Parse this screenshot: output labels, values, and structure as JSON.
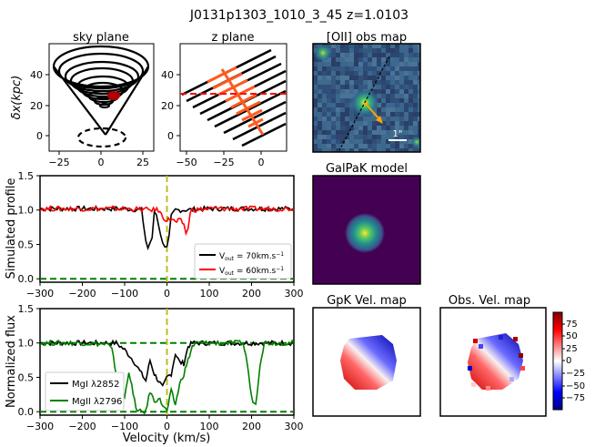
{
  "figure": {
    "title": "J0131p1303_1010_3_45 z=1.0103"
  },
  "panels": {
    "sky": {
      "title": "sky plane",
      "ylabel": "δx(kpc)",
      "xticks": [
        "−25",
        "0",
        "25"
      ],
      "yticks": [
        "0",
        "20",
        "40"
      ]
    },
    "z": {
      "title": "z plane",
      "xticks": [
        "−50",
        "−25",
        "0"
      ],
      "yticks": [
        "0",
        "20",
        "40"
      ]
    },
    "obs": {
      "title": "[OII] obs map",
      "scale_label": "1\""
    },
    "galpak": {
      "title": "GalPaK model"
    },
    "gpkvel": {
      "title": "GpK Vel. map"
    },
    "obsvel": {
      "title": "Obs. Vel. map"
    },
    "colorbar": {
      "ticks": [
        "75",
        "50",
        "25",
        "0",
        "−25",
        "−50",
        "−75"
      ]
    },
    "sim": {
      "ylabel": "Simulated profile",
      "yticks": [
        "0.0",
        "0.5",
        "1.0",
        "1.5"
      ],
      "xticks": [
        "−300",
        "−200",
        "−100",
        "0",
        "100",
        "200",
        "300"
      ],
      "legend": [
        {
          "label_main": "V",
          "label_sub": "out",
          "label_rest": " = 70km.s",
          "label_sup": "−1",
          "color": "#000000"
        },
        {
          "label_main": "V",
          "label_sub": "out",
          "label_rest": " = 60km.s",
          "label_sup": "−1",
          "color": "#ff0000"
        }
      ]
    },
    "norm": {
      "ylabel": "Normalized flux",
      "xlabel": "Velocity (km/s)",
      "yticks": [
        "0.0",
        "0.5",
        "1.0",
        "1.5"
      ],
      "xticks": [
        "−300",
        "−200",
        "−100",
        "0",
        "100",
        "200",
        "300"
      ],
      "legend": [
        {
          "label": "MgI λ2852",
          "color": "#000000"
        },
        {
          "label": "MgII λ2796",
          "color": "#008000"
        }
      ]
    }
  },
  "chart_data": [
    {
      "type": "line",
      "panel": "Simulated profile",
      "xlim": [
        -300,
        300
      ],
      "ylim": [
        -0.05,
        1.5
      ],
      "reference_lines": {
        "vertical_x": 0,
        "horizontal_y": 0.0
      },
      "series": [
        {
          "name": "V_out = 70km.s^-1",
          "color": "#000000",
          "x": [
            -300,
            -200,
            -100,
            -60,
            -50,
            -45,
            -40,
            -35,
            -30,
            -25,
            -20,
            -15,
            -10,
            -5,
            0,
            5,
            10,
            20,
            40,
            100,
            200,
            300
          ],
          "y": [
            1.02,
            1.02,
            1.02,
            1.0,
            0.55,
            0.45,
            0.5,
            0.6,
            0.98,
            0.95,
            0.8,
            0.62,
            0.55,
            0.48,
            0.45,
            0.6,
            0.9,
            1.0,
            1.0,
            1.02,
            1.02,
            1.02
          ]
        },
        {
          "name": "V_out = 60km.s^-1",
          "color": "#ff0000",
          "x": [
            -300,
            -200,
            -100,
            -20,
            -10,
            0,
            10,
            20,
            30,
            40,
            45,
            50,
            55,
            60,
            100,
            200,
            300
          ],
          "y": [
            1.02,
            1.02,
            1.02,
            1.0,
            0.9,
            0.85,
            0.88,
            0.82,
            0.85,
            0.8,
            0.65,
            0.75,
            0.95,
            1.0,
            1.02,
            1.02,
            1.02
          ]
        }
      ]
    },
    {
      "type": "line",
      "panel": "Normalized flux",
      "xlim": [
        -300,
        300
      ],
      "ylim": [
        -0.05,
        1.5
      ],
      "xlabel": "Velocity (km/s)",
      "reference_lines": {
        "vertical_x": 0,
        "horizontal_y": [
          0.0,
          1.0
        ]
      },
      "series": [
        {
          "name": "MgI λ2852",
          "color": "#000000",
          "x": [
            -300,
            -200,
            -120,
            -100,
            -80,
            -60,
            -50,
            -40,
            -30,
            -20,
            -10,
            0,
            10,
            20,
            30,
            40,
            50,
            60,
            100,
            200,
            300
          ],
          "y": [
            1.0,
            1.0,
            1.0,
            0.9,
            0.75,
            0.55,
            0.45,
            0.75,
            0.55,
            0.45,
            0.35,
            0.5,
            0.55,
            0.85,
            0.72,
            0.7,
            0.95,
            1.0,
            1.0,
            1.0,
            1.0
          ]
        },
        {
          "name": "MgII λ2796",
          "color": "#008000",
          "x": [
            -300,
            -200,
            -140,
            -130,
            -120,
            -110,
            -100,
            -90,
            -80,
            -70,
            -60,
            -50,
            -40,
            -30,
            -20,
            -10,
            0,
            10,
            20,
            30,
            40,
            50,
            60,
            70,
            100,
            180,
            190,
            200,
            210,
            220,
            230,
            300
          ],
          "y": [
            1.0,
            1.0,
            0.98,
            0.9,
            0.55,
            0.35,
            0.2,
            0.6,
            0.25,
            0.0,
            0.0,
            0.0,
            0.3,
            0.15,
            0.2,
            0.1,
            0.0,
            0.3,
            0.1,
            0.4,
            0.55,
            0.75,
            0.95,
            1.0,
            1.0,
            1.0,
            0.7,
            0.2,
            0.1,
            0.7,
            1.0,
            1.0
          ]
        }
      ]
    }
  ]
}
